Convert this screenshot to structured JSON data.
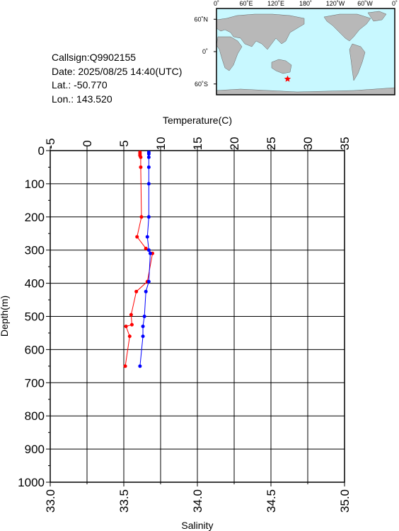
{
  "info": {
    "callsign": "Callsign:Q9902155",
    "date": "Date:  2025/08/25 14:40(UTC)",
    "lat": "Lat.:  -50.770",
    "lon": "Lon.:  143.520"
  },
  "map": {
    "lon_labels": [
      "0˚",
      "60˚E",
      "120˚E",
      "180˚",
      "120˚W",
      "60˚W",
      "0˚"
    ],
    "lat_labels": [
      "60˚N",
      "0˚",
      "60˚S"
    ],
    "ocean_color": "#c8f8ff",
    "land_color": "#b8b8b8",
    "marker": {
      "lat": -50.77,
      "lon": 143.52,
      "color": "#ff0000",
      "icon": "star-icon"
    }
  },
  "chart_data": {
    "type": "line",
    "ylabel": "Depth(m)",
    "ylim": [
      1000,
      0
    ],
    "y_ticks": [
      "0",
      "100",
      "200",
      "300",
      "400",
      "500",
      "600",
      "700",
      "800",
      "900",
      "1000"
    ],
    "top_axis": {
      "label": "Temperature(C)",
      "lim": [
        -5,
        35
      ],
      "ticks": [
        "-5",
        "0",
        "5",
        "10",
        "15",
        "20",
        "25",
        "30",
        "35"
      ]
    },
    "bottom_axis": {
      "label": "Salinity",
      "lim": [
        33.0,
        35.0
      ],
      "ticks": [
        "33.0",
        "33.5",
        "34.0",
        "34.5",
        "35.0"
      ]
    },
    "grid": true,
    "series": [
      {
        "color": "#ff0000",
        "axis": "top",
        "points": [
          [
            7.2,
            5
          ],
          [
            7.2,
            10
          ],
          [
            7.2,
            15
          ],
          [
            7.3,
            20
          ],
          [
            7.3,
            50
          ],
          [
            7.4,
            200
          ],
          [
            6.8,
            260
          ],
          [
            8.0,
            295
          ],
          [
            8.9,
            310
          ],
          [
            8.2,
            395
          ],
          [
            6.7,
            425
          ],
          [
            6.0,
            495
          ],
          [
            6.1,
            525
          ],
          [
            5.3,
            530
          ],
          [
            5.8,
            560
          ],
          [
            5.2,
            650
          ]
        ]
      },
      {
        "color": "#0000ff",
        "axis": "bottom",
        "points": [
          [
            33.67,
            5
          ],
          [
            33.67,
            10
          ],
          [
            33.67,
            20
          ],
          [
            33.67,
            50
          ],
          [
            33.67,
            100
          ],
          [
            33.67,
            200
          ],
          [
            33.66,
            260
          ],
          [
            33.67,
            300
          ],
          [
            33.68,
            310
          ],
          [
            33.67,
            395
          ],
          [
            33.65,
            425
          ],
          [
            33.64,
            500
          ],
          [
            33.63,
            530
          ],
          [
            33.63,
            560
          ],
          [
            33.61,
            650
          ]
        ]
      }
    ]
  }
}
